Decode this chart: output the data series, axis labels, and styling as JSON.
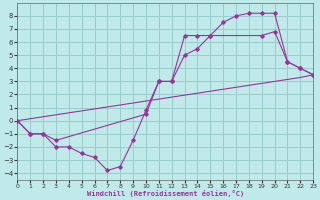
{
  "xlabel": "Windchill (Refroidissement éolien,°C)",
  "background_color": "#c0eaea",
  "grid_color": "#99cccc",
  "line_color": "#993399",
  "xlim": [
    0,
    23
  ],
  "ylim": [
    -4.5,
    9.0
  ],
  "xticks": [
    0,
    1,
    2,
    3,
    4,
    5,
    6,
    7,
    8,
    9,
    10,
    11,
    12,
    13,
    14,
    15,
    16,
    17,
    18,
    19,
    20,
    21,
    22,
    23
  ],
  "yticks": [
    -4,
    -3,
    -2,
    -1,
    0,
    1,
    2,
    3,
    4,
    5,
    6,
    7,
    8
  ],
  "curve1_x": [
    0,
    1,
    2,
    3,
    4,
    5,
    6,
    7,
    8,
    9,
    10,
    11,
    12,
    13,
    14,
    15,
    16,
    17,
    18,
    19,
    20,
    21,
    22,
    23
  ],
  "curve1_y": [
    0,
    -1.0,
    -1.0,
    -2.0,
    -2.0,
    -2.5,
    -2.8,
    -3.8,
    -3.5,
    -1.5,
    0.8,
    3.0,
    3.0,
    5.0,
    5.5,
    6.5,
    7.5,
    8.0,
    8.2,
    8.2,
    8.2,
    4.5,
    4.0,
    3.5
  ],
  "curve2_x": [
    0,
    1,
    2,
    3,
    4,
    5,
    6,
    7,
    8,
    9,
    10,
    11,
    12,
    13,
    14,
    15,
    16,
    17,
    18,
    19,
    20,
    21,
    22,
    23
  ],
  "curve2_y": [
    0,
    0.15,
    0.3,
    0.45,
    0.6,
    0.75,
    0.9,
    1.05,
    1.2,
    1.35,
    1.5,
    1.65,
    1.8,
    1.95,
    2.1,
    2.25,
    2.4,
    2.55,
    2.7,
    2.85,
    3.0,
    3.15,
    3.3,
    3.5
  ],
  "curve3_x": [
    0,
    1,
    2,
    3,
    10,
    11,
    12,
    13,
    14,
    15,
    19,
    20,
    21,
    22,
    23
  ],
  "curve3_y": [
    0,
    -1.0,
    -1.0,
    -1.5,
    0.5,
    3.0,
    3.0,
    6.5,
    6.5,
    6.5,
    6.5,
    6.8,
    4.5,
    4.0,
    3.5
  ]
}
